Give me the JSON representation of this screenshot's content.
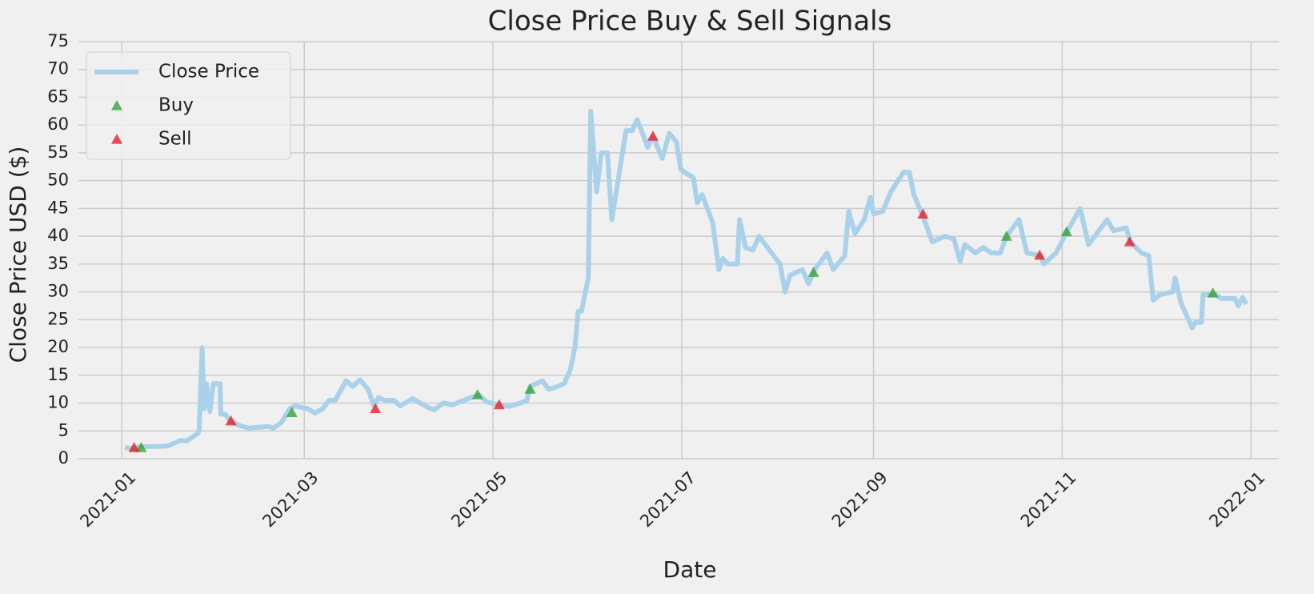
{
  "chart_data": {
    "type": "line",
    "title": "Close Price Buy & Sell Signals",
    "x_label": "Date",
    "y_label": "Close Price USD ($)",
    "xlim": [
      -14,
      374
    ],
    "xticks": [
      {
        "value": 0,
        "label": "2021-01"
      },
      {
        "value": 59,
        "label": "2021-03"
      },
      {
        "value": 120,
        "label": "2021-05"
      },
      {
        "value": 181,
        "label": "2021-07"
      },
      {
        "value": 243,
        "label": "2021-09"
      },
      {
        "value": 304,
        "label": "2021-11"
      },
      {
        "value": 365,
        "label": "2022-01"
      }
    ],
    "ylim": [
      0,
      75
    ],
    "yticks": [
      0,
      5,
      10,
      15,
      20,
      25,
      30,
      35,
      40,
      45,
      50,
      55,
      60,
      65,
      70,
      75
    ],
    "grid": true,
    "legend": "upper left",
    "series": [
      {
        "name": "Close Price",
        "type": "line",
        "color": "#a9d1e9",
        "x": [
          1,
          3.5,
          6.3,
          12,
          15,
          19,
          21,
          24.5,
          25,
          26,
          26.6,
          27.4,
          28.5,
          29.6,
          31.8,
          32,
          33.4,
          35,
          38,
          41,
          47.5,
          49,
          51.6,
          54.3,
          56,
          60,
          62.5,
          65,
          67,
          69,
          72.5,
          74.7,
          77,
          79.6,
          81.5,
          83,
          85,
          88,
          90,
          94,
          99,
          101,
          104,
          107,
          110.5,
          115.5,
          118,
          121.7,
          125,
          129,
          131,
          132,
          136,
          138,
          140,
          143,
          145,
          146.5,
          147.5,
          148.6,
          150.8,
          151.6,
          153.5,
          155,
          157,
          158.4,
          161,
          163,
          165,
          166.6,
          169,
          170,
          171.7,
          174.7,
          177,
          179.3,
          180.7,
          184.8,
          186,
          187.6,
          191,
          193,
          194.3,
          196,
          199,
          199.7,
          201.6,
          204,
          206,
          208,
          212.8,
          214.4,
          216,
          220,
          222,
          224,
          228,
          230,
          233.7,
          235,
          237,
          240,
          242,
          243,
          246,
          248.6,
          252.7,
          254.6,
          256,
          258.7,
          262,
          266,
          269,
          271,
          272.5,
          276,
          278.5,
          281,
          284,
          286,
          290,
          292.6,
          297,
          298,
          302,
          305.7,
          309.8,
          312.5,
          318.5,
          320.6,
          324.7,
          326,
          329.6,
          332,
          333.4,
          335.6,
          339.7,
          340.5,
          342.4,
          346,
          347,
          349,
          349.5,
          353.6,
          355.4,
          359.8,
          360.9,
          362.3,
          363.5
        ],
        "values": [
          2,
          1.8,
          2.2,
          2.2,
          2.3,
          3.3,
          3.2,
          4.5,
          5,
          20,
          9,
          13.5,
          8.5,
          13.5,
          13.5,
          8,
          8,
          6.8,
          6,
          5.5,
          5.8,
          5.5,
          6.5,
          9,
          9.5,
          9,
          8.2,
          9,
          10.5,
          10.5,
          14,
          13,
          14.2,
          12.5,
          9.5,
          11,
          10.5,
          10.5,
          9.5,
          10.8,
          9.2,
          8.8,
          10,
          9.7,
          10.5,
          11.5,
          10.2,
          9.7,
          9.4,
          10,
          10.5,
          13,
          14,
          12.5,
          12.8,
          13.5,
          16,
          20,
          26.5,
          26.5,
          32.5,
          62.5,
          48,
          55,
          55,
          43,
          52,
          59,
          59,
          61,
          57.5,
          56,
          58,
          54,
          58.5,
          57,
          52,
          50.5,
          46,
          47.5,
          42.5,
          34,
          36,
          35,
          35,
          43,
          38,
          37.5,
          40,
          38.5,
          35,
          30,
          33,
          34,
          31.5,
          34,
          37,
          34,
          36.5,
          44.5,
          40.5,
          43,
          47,
          44,
          44.5,
          48,
          51.5,
          51.5,
          47.5,
          44,
          39,
          40,
          39.5,
          35.5,
          38.5,
          37,
          38,
          37,
          37,
          40,
          43,
          37,
          36.5,
          35,
          37,
          41,
          45,
          38.5,
          43,
          41,
          41.5,
          39,
          37,
          36.5,
          28.5,
          29.5,
          30,
          32.5,
          28,
          23.5,
          24.5,
          24.5,
          29.5,
          29.5,
          28.8,
          28.8,
          27.5,
          29,
          27.8
        ]
      },
      {
        "name": "Buy",
        "type": "scatter",
        "color": "#2ca02c",
        "x": [
          6.3,
          55,
          115,
          132,
          223.6,
          286,
          305.4,
          352.7
        ],
        "values": [
          2,
          8.3,
          11.5,
          12.5,
          33.5,
          40,
          40.8,
          29.8
        ]
      },
      {
        "name": "Sell",
        "type": "scatter",
        "color": "#e8141c",
        "x": [
          4,
          35.3,
          82,
          122,
          171.7,
          259,
          296.7,
          325.8
        ],
        "values": [
          2,
          6.8,
          9,
          9.7,
          58,
          44,
          36.6,
          39
        ]
      }
    ]
  }
}
